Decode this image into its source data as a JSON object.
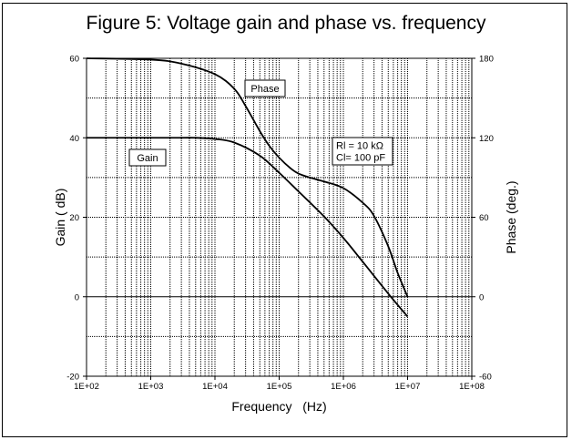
{
  "chart_data": {
    "type": "line",
    "title": "Figure 5: Voltage gain and phase vs. frequency",
    "xlabel": "Frequency   (Hz)",
    "ylabel": "Gain ( dB)",
    "y2label": "Phase (deg.)",
    "x_scale": "log",
    "xlim": [
      100,
      100000000
    ],
    "ylim": [
      -20,
      60
    ],
    "y2lim": [
      -60,
      180
    ],
    "grid": true,
    "x_ticks": [
      "1E+02",
      "1E+03",
      "1E+04",
      "1E+05",
      "1E+06",
      "1E+07",
      "1E+08"
    ],
    "y_ticks": [
      "-20",
      "0",
      "20",
      "40",
      "60"
    ],
    "y2_ticks": [
      "-60",
      "0",
      "60",
      "120",
      "180"
    ],
    "series": [
      {
        "name": "Gain",
        "axis": "left",
        "x": [
          100,
          1000,
          3000,
          5000,
          10000,
          20000,
          50000,
          100000,
          200000,
          500000,
          1000000,
          2000000,
          5000000,
          10000000
        ],
        "values": [
          40,
          40,
          40,
          40,
          39.7,
          38.8,
          35.5,
          31.2,
          26.5,
          20.2,
          14.8,
          8.8,
          0.8,
          -5
        ]
      },
      {
        "name": "Phase",
        "axis": "right",
        "x": [
          100,
          1000,
          3000,
          10000,
          20000,
          30000,
          50000,
          70000,
          100000,
          150000,
          200000,
          300000,
          500000,
          1000000,
          2000000,
          3000000,
          5000000,
          7000000,
          10000000
        ],
        "values": [
          180,
          179,
          176,
          168,
          157,
          144,
          125,
          114,
          105,
          97,
          93,
          90,
          87,
          82,
          71,
          61,
          38,
          18,
          0
        ]
      }
    ],
    "annotations": [
      {
        "text": "Phase",
        "series": "Phase"
      },
      {
        "text": "Gain",
        "series": "Gain"
      },
      {
        "text": "Rl = 10 kΩ\nCl= 100 pF"
      }
    ]
  }
}
